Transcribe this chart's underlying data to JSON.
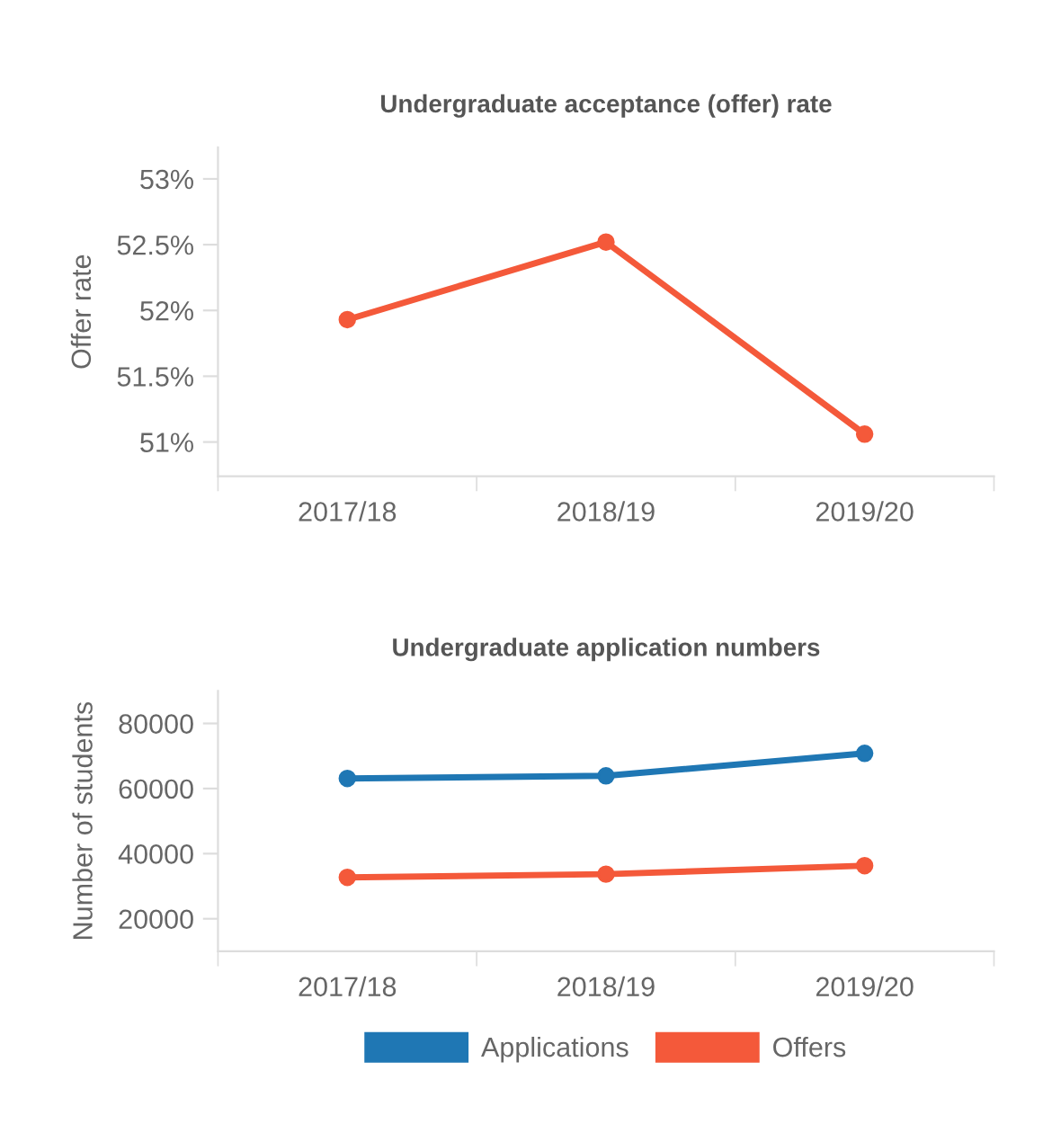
{
  "chart_data": [
    {
      "type": "line",
      "title": "Undergraduate acceptance (offer) rate",
      "ylabel": "Offer rate",
      "categories": [
        "2017/18",
        "2018/19",
        "2019/20"
      ],
      "series": [
        {
          "color": "#f4593a",
          "values": [
            51.93,
            52.52,
            51.06
          ]
        }
      ],
      "ylim": [
        50.74,
        53.24
      ],
      "yticks": [
        {
          "value": 51,
          "label": "51%"
        },
        {
          "value": 51.5,
          "label": "51.5%"
        },
        {
          "value": 52,
          "label": "52%"
        },
        {
          "value": 52.5,
          "label": "52.5%"
        },
        {
          "value": 53,
          "label": "53%"
        }
      ],
      "grid": false,
      "legend": false,
      "marker": "circle",
      "line_style": "solid"
    },
    {
      "type": "line",
      "title": "Undergraduate application numbers",
      "ylabel": "Number of students",
      "categories": [
        "2017/18",
        "2018/19",
        "2019/20"
      ],
      "series": [
        {
          "name": "Applications",
          "color": "#1f77b4",
          "values": [
            63100,
            63900,
            70800
          ]
        },
        {
          "name": "Offers",
          "color": "#f4593a",
          "values": [
            32700,
            33700,
            36300
          ]
        }
      ],
      "ylim": [
        10000,
        90000
      ],
      "yticks": [
        20000,
        40000,
        60000,
        80000
      ],
      "grid": false,
      "legend": "bottom",
      "marker": "circle",
      "line_style": "solid"
    }
  ]
}
